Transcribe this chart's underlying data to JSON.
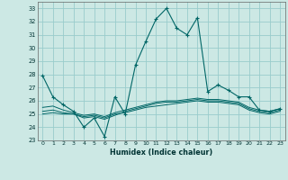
{
  "title": "",
  "xlabel": "Humidex (Indice chaleur)",
  "background_color": "#cce8e4",
  "grid_color": "#99cccc",
  "line_color": "#006666",
  "xlim": [
    -0.5,
    23.5
  ],
  "ylim": [
    23,
    33.5
  ],
  "yticks": [
    23,
    24,
    25,
    26,
    27,
    28,
    29,
    30,
    31,
    32,
    33
  ],
  "xticks": [
    0,
    1,
    2,
    3,
    4,
    5,
    6,
    7,
    8,
    9,
    10,
    11,
    12,
    13,
    14,
    15,
    16,
    17,
    18,
    19,
    20,
    21,
    22,
    23
  ],
  "series1_x": [
    0,
    1,
    2,
    3,
    4,
    5,
    6,
    7,
    8,
    9,
    10,
    11,
    12,
    13,
    14,
    15,
    16,
    17,
    18,
    19,
    20,
    21,
    22,
    23
  ],
  "series1_y": [
    27.9,
    26.3,
    25.7,
    25.2,
    24.0,
    24.7,
    23.3,
    26.3,
    25.0,
    28.7,
    30.5,
    32.2,
    33.0,
    31.5,
    31.0,
    32.3,
    26.7,
    27.2,
    26.8,
    26.3,
    26.3,
    25.3,
    25.2,
    25.4
  ],
  "series2_x": [
    0,
    1,
    2,
    3,
    4,
    5,
    6,
    7,
    8,
    9,
    10,
    11,
    12,
    13,
    14,
    15,
    16,
    17,
    18,
    19,
    20,
    21,
    22,
    23
  ],
  "series2_y": [
    25.5,
    25.6,
    25.3,
    25.1,
    24.9,
    25.0,
    24.8,
    25.1,
    25.3,
    25.5,
    25.7,
    25.9,
    26.0,
    26.0,
    26.1,
    26.2,
    26.1,
    26.1,
    26.0,
    25.9,
    25.5,
    25.3,
    25.2,
    25.4
  ],
  "series3_x": [
    0,
    1,
    2,
    3,
    4,
    5,
    6,
    7,
    8,
    9,
    10,
    11,
    12,
    13,
    14,
    15,
    16,
    17,
    18,
    19,
    20,
    21,
    22,
    23
  ],
  "series3_y": [
    25.0,
    25.1,
    25.0,
    25.0,
    24.8,
    24.9,
    24.7,
    25.0,
    25.1,
    25.3,
    25.5,
    25.6,
    25.7,
    25.8,
    25.9,
    26.0,
    25.9,
    25.9,
    25.8,
    25.7,
    25.3,
    25.1,
    25.0,
    25.2
  ],
  "series4_x": [
    0,
    1,
    2,
    3,
    4,
    5,
    6,
    7,
    8,
    9,
    10,
    11,
    12,
    13,
    14,
    15,
    16,
    17,
    18,
    19,
    20,
    21,
    22,
    23
  ],
  "series4_y": [
    25.2,
    25.3,
    25.1,
    25.0,
    24.7,
    24.8,
    24.6,
    24.9,
    25.2,
    25.4,
    25.6,
    25.8,
    25.9,
    25.9,
    26.0,
    26.1,
    26.0,
    26.0,
    25.9,
    25.8,
    25.4,
    25.2,
    25.1,
    25.3
  ]
}
